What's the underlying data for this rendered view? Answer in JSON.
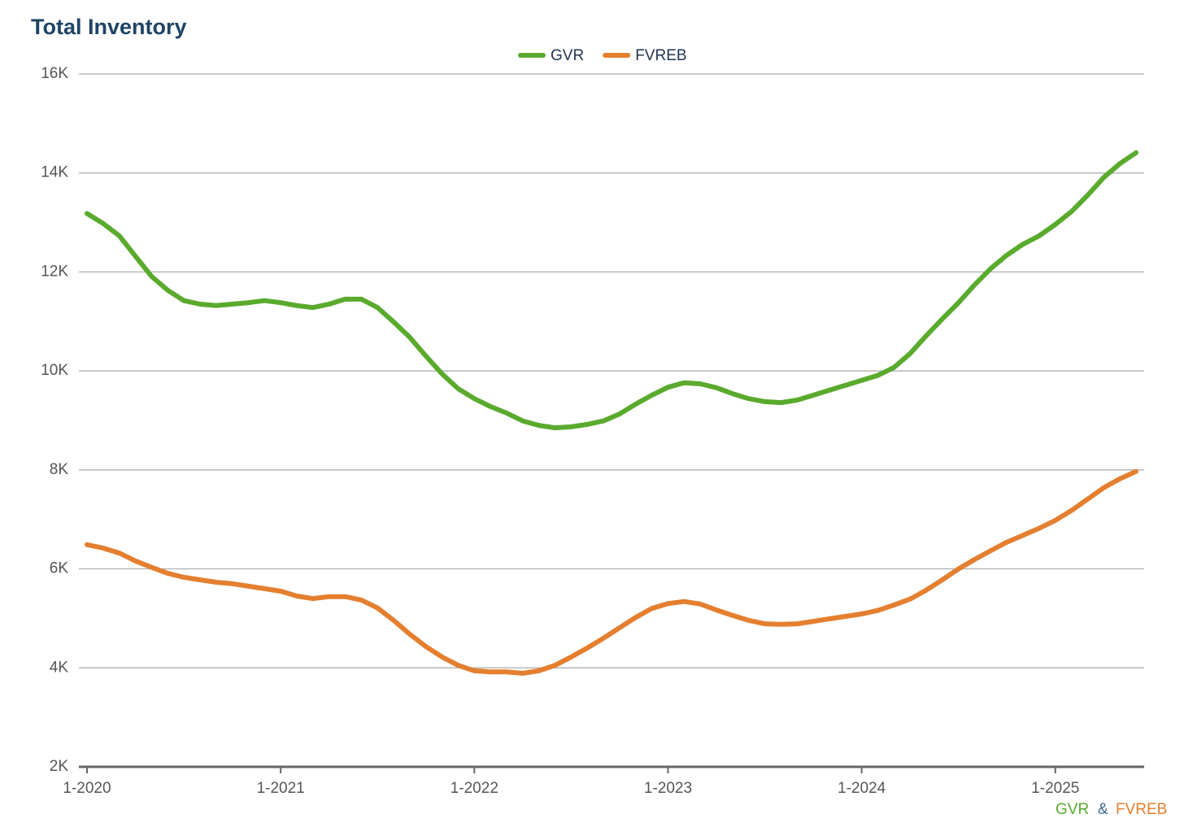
{
  "chart_data": {
    "type": "line",
    "title": "Total Inventory",
    "categories": [
      "1-2020",
      null,
      null,
      null,
      null,
      null,
      null,
      null,
      null,
      null,
      null,
      null,
      "1-2021",
      null,
      null,
      null,
      null,
      null,
      null,
      null,
      null,
      null,
      null,
      null,
      "1-2022",
      null,
      null,
      null,
      null,
      null,
      null,
      null,
      null,
      null,
      null,
      null,
      "1-2023",
      null,
      null,
      null,
      null,
      null,
      null,
      null,
      null,
      null,
      null,
      null,
      "1-2024",
      null,
      null,
      null,
      null,
      null,
      null,
      null,
      null,
      null,
      null,
      null,
      "1-2025",
      null,
      null,
      null,
      null,
      null
    ],
    "series": [
      {
        "name": "GVR",
        "color": "#5aaa2d",
        "values": [
          13180,
          12980,
          12730,
          12320,
          11910,
          11630,
          11420,
          11350,
          11320,
          11350,
          11380,
          11420,
          11380,
          11320,
          11280,
          11350,
          11450,
          11450,
          11280,
          10990,
          10680,
          10300,
          9940,
          9640,
          9440,
          9280,
          9150,
          8990,
          8900,
          8850,
          8870,
          8920,
          8990,
          9130,
          9330,
          9510,
          9670,
          9760,
          9740,
          9660,
          9540,
          9440,
          9380,
          9360,
          9410,
          9510,
          9610,
          9710,
          9810,
          9910,
          10070,
          10350,
          10710,
          11050,
          11380,
          11740,
          12070,
          12340,
          12560,
          12730,
          12960,
          13220,
          13550,
          13910,
          14190,
          14410
        ]
      },
      {
        "name": "FVREB",
        "color": "#e47f2f",
        "values": [
          6490,
          6420,
          6320,
          6160,
          6030,
          5910,
          5830,
          5780,
          5730,
          5700,
          5650,
          5600,
          5550,
          5450,
          5400,
          5440,
          5440,
          5370,
          5210,
          4960,
          4680,
          4430,
          4220,
          4050,
          3940,
          3920,
          3920,
          3890,
          3940,
          4050,
          4220,
          4400,
          4600,
          4810,
          5020,
          5200,
          5300,
          5340,
          5290,
          5170,
          5060,
          4960,
          4890,
          4880,
          4890,
          4940,
          4990,
          5040,
          5090,
          5160,
          5270,
          5390,
          5570,
          5780,
          6000,
          6190,
          6370,
          6540,
          6680,
          6820,
          6980,
          7180,
          7410,
          7640,
          7820,
          7970
        ]
      }
    ],
    "ylim": [
      2000,
      16000
    ],
    "yticks": [
      {
        "value": 2000,
        "label": "2K"
      },
      {
        "value": 4000,
        "label": "4K"
      },
      {
        "value": 6000,
        "label": "6K"
      },
      {
        "value": 8000,
        "label": "8K"
      },
      {
        "value": 10000,
        "label": "10K"
      },
      {
        "value": 12000,
        "label": "12K"
      },
      {
        "value": 14000,
        "label": "14K"
      },
      {
        "value": 16000,
        "label": "16K"
      }
    ],
    "grid": true,
    "legend": "top",
    "footer": [
      "GVR",
      "&",
      "FVREB"
    ]
  }
}
